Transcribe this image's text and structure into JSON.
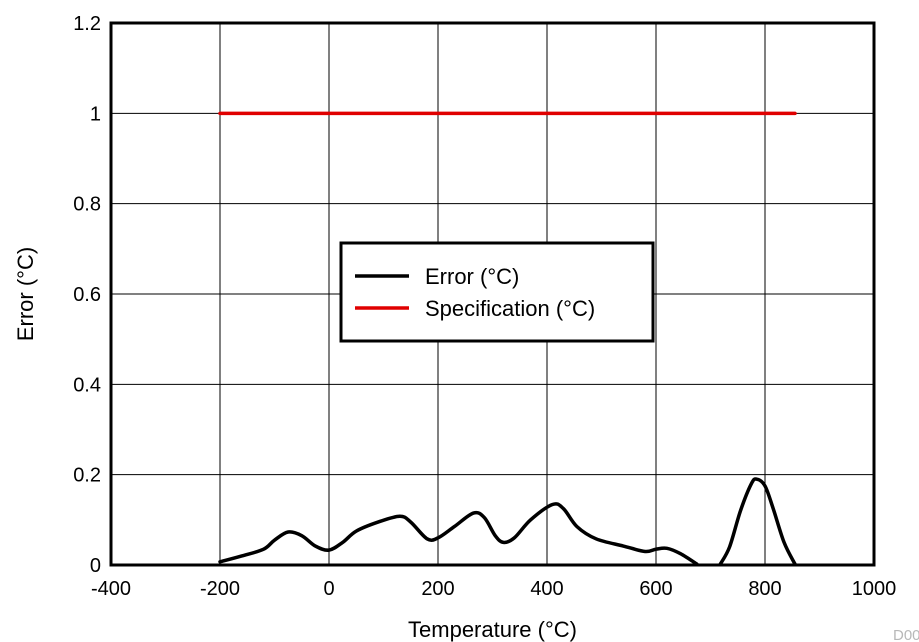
{
  "chart_data": {
    "type": "line",
    "title": "",
    "xlabel": "Temperature (°C)",
    "ylabel": "Error (°C)",
    "xlim": [
      -400,
      1000
    ],
    "ylim": [
      0,
      1.2
    ],
    "x_ticks": [
      -400,
      -200,
      0,
      200,
      400,
      600,
      800,
      1000
    ],
    "y_ticks": [
      0,
      0.2,
      0.4,
      0.6,
      0.8,
      1,
      1.2
    ],
    "x_tick_labels": [
      "-400",
      "-200",
      "0",
      "200",
      "400",
      "600",
      "800",
      "1000"
    ],
    "y_tick_labels": [
      "0",
      "0.2",
      "0.4",
      "0.6",
      "0.8",
      "1",
      "1.2"
    ],
    "grid": true,
    "legend_position": "center",
    "series": [
      {
        "name": "Error (°C)",
        "color": "#000000",
        "segments": [
          [
            [
              -200,
              0.007
            ],
            [
              -160,
              0.02
            ],
            [
              -120,
              0.035
            ],
            [
              -100,
              0.055
            ],
            [
              -75,
              0.073
            ],
            [
              -50,
              0.065
            ],
            [
              -25,
              0.042
            ],
            [
              0,
              0.033
            ],
            [
              25,
              0.05
            ],
            [
              50,
              0.075
            ],
            [
              90,
              0.095
            ],
            [
              130,
              0.108
            ],
            [
              150,
              0.095
            ],
            [
              180,
              0.058
            ],
            [
              200,
              0.06
            ],
            [
              230,
              0.085
            ],
            [
              265,
              0.115
            ],
            [
              285,
              0.105
            ],
            [
              305,
              0.065
            ],
            [
              320,
              0.05
            ],
            [
              340,
              0.06
            ],
            [
              370,
              0.1
            ],
            [
              410,
              0.134
            ],
            [
              430,
              0.125
            ],
            [
              455,
              0.085
            ],
            [
              490,
              0.058
            ],
            [
              540,
              0.042
            ],
            [
              580,
              0.03
            ],
            [
              600,
              0.035
            ],
            [
              620,
              0.037
            ],
            [
              645,
              0.025
            ],
            [
              675,
              0.002
            ]
          ],
          [
            [
              718,
              0.002
            ],
            [
              735,
              0.04
            ],
            [
              755,
              0.12
            ],
            [
              775,
              0.18
            ],
            [
              785,
              0.19
            ],
            [
              800,
              0.175
            ],
            [
              815,
              0.125
            ],
            [
              835,
              0.05
            ],
            [
              855,
              0.002
            ]
          ]
        ]
      },
      {
        "name": "Specification (°C)",
        "color": "#e00000",
        "segments": [
          [
            [
              -200,
              1
            ],
            [
              855,
              1
            ]
          ]
        ]
      }
    ],
    "footnote": "D003"
  }
}
